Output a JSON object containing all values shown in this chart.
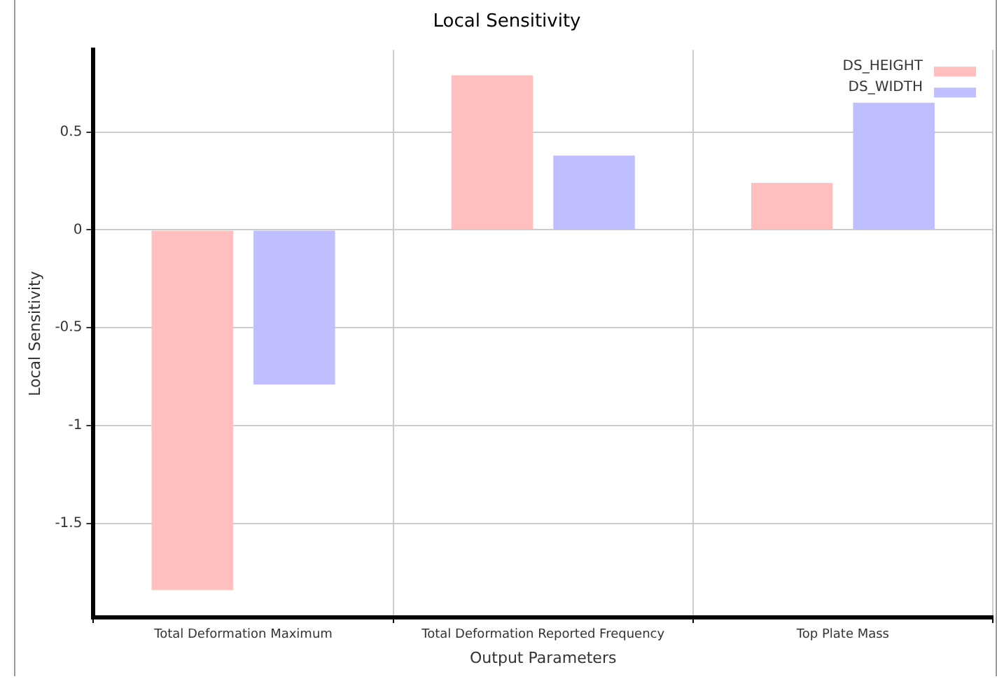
{
  "chart_data": {
    "type": "bar",
    "title": "Local Sensitivity",
    "xlabel": "Output Parameters",
    "ylabel": "Local Sensitivity",
    "categories": [
      "Total Deformation Maximum",
      "Total Deformation Reported Frequency",
      "Top Plate Mass"
    ],
    "series": [
      {
        "name": "DS_HEIGHT",
        "color": "#ffbfbf",
        "values": [
          -1.84,
          0.79,
          0.24
        ]
      },
      {
        "name": "DS_WIDTH",
        "color": "#bfbfff",
        "values": [
          -0.79,
          0.38,
          0.65
        ]
      }
    ],
    "ylim": [
      -1.98,
      0.92
    ],
    "yticks": [
      -1.5,
      -1,
      -0.5,
      0,
      0.5
    ],
    "grid": true,
    "legend": "top right"
  }
}
